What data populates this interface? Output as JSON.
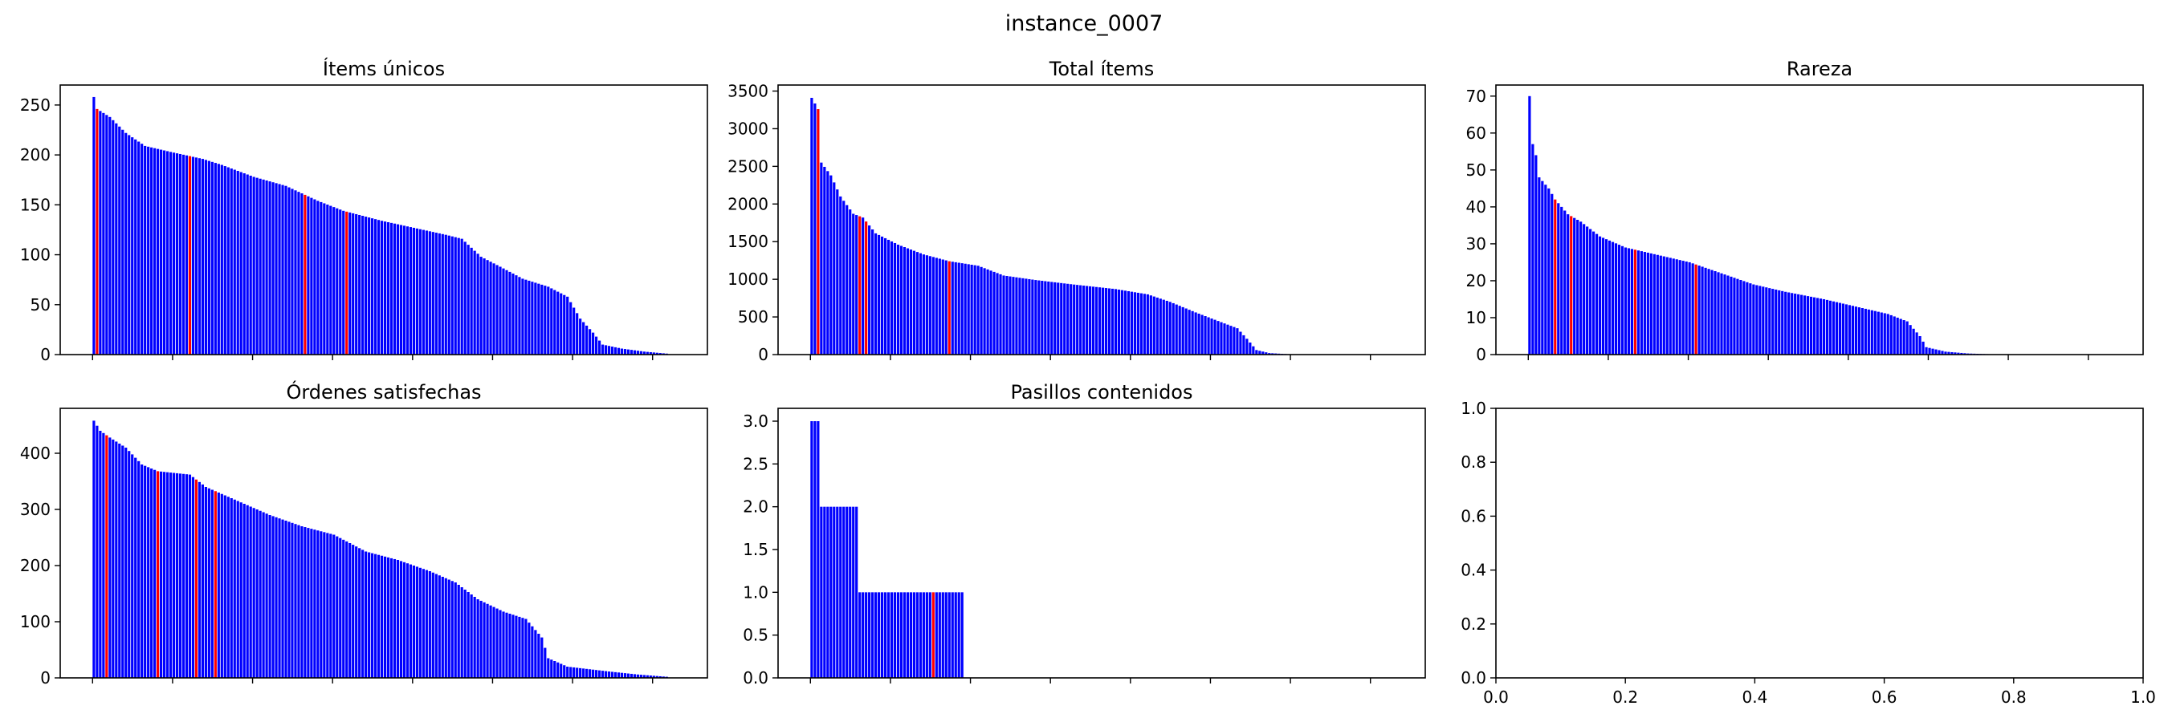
{
  "figure": {
    "suptitle": "instance_0007"
  },
  "colors": {
    "bar": "#0000ff",
    "highlight": "#ff0000",
    "axes": "#000000",
    "background": "#ffffff"
  },
  "chart_data": [
    {
      "type": "bar",
      "title": "Ítems únicos",
      "xlabel": "",
      "ylabel": "",
      "ylim": [
        0,
        270
      ],
      "yticks": [
        0,
        50,
        100,
        150,
        200,
        250
      ],
      "xtick_count": 8,
      "x_tick_labels_visible": false,
      "grid": false,
      "bar_count": 180,
      "highlight_color": "#ff0000",
      "bar_color": "#0000ff",
      "series": [
        {
          "name": "",
          "values_profile": [
            [
              0,
              258
            ],
            [
              1,
              246
            ],
            [
              5,
              238
            ],
            [
              10,
              222
            ],
            [
              16,
              209
            ],
            [
              24,
              203
            ],
            [
              34,
              196
            ],
            [
              40,
              190
            ],
            [
              50,
              178
            ],
            [
              60,
              169
            ],
            [
              70,
              154
            ],
            [
              78,
              144
            ],
            [
              90,
              134
            ],
            [
              100,
              127
            ],
            [
              110,
              120
            ],
            [
              115,
              116
            ],
            [
              121,
              98
            ],
            [
              127,
              88
            ],
            [
              134,
              76
            ],
            [
              142,
              68
            ],
            [
              148,
              58
            ],
            [
              152,
              36
            ],
            [
              156,
              22
            ],
            [
              159,
              10
            ],
            [
              165,
              6
            ],
            [
              172,
              3
            ],
            [
              179,
              1
            ]
          ]
        }
      ],
      "highlighted_bar_indices": [
        1,
        30,
        66,
        79
      ]
    },
    {
      "type": "bar",
      "title": "Total ítems",
      "xlabel": "",
      "ylabel": "",
      "ylim": [
        0,
        3580
      ],
      "yticks": [
        0,
        500,
        1000,
        1500,
        2000,
        2500,
        3000,
        3500
      ],
      "xtick_count": 8,
      "x_tick_labels_visible": false,
      "grid": false,
      "bar_count": 150,
      "highlight_color": "#ff0000",
      "bar_color": "#0000ff",
      "series": [
        {
          "name": "",
          "values_profile": [
            [
              0,
              3410
            ],
            [
              2,
              3260
            ],
            [
              3,
              2550
            ],
            [
              6,
              2380
            ],
            [
              9,
              2100
            ],
            [
              13,
              1870
            ],
            [
              16,
              1820
            ],
            [
              20,
              1610
            ],
            [
              27,
              1460
            ],
            [
              35,
              1330
            ],
            [
              43,
              1240
            ],
            [
              52,
              1180
            ],
            [
              60,
              1050
            ],
            [
              70,
              990
            ],
            [
              82,
              930
            ],
            [
              95,
              870
            ],
            [
              105,
              800
            ],
            [
              112,
              700
            ],
            [
              120,
              560
            ],
            [
              128,
              430
            ],
            [
              133,
              350
            ],
            [
              136,
              210
            ],
            [
              139,
              60
            ],
            [
              143,
              20
            ],
            [
              149,
              5
            ]
          ]
        }
      ],
      "highlighted_bar_indices": [
        2,
        15,
        17,
        43
      ]
    },
    {
      "type": "bar",
      "title": "Rareza",
      "xlabel": "",
      "ylabel": "",
      "ylim": [
        0,
        73
      ],
      "yticks": [
        0,
        10,
        20,
        30,
        40,
        50,
        60,
        70
      ],
      "xtick_count": 8,
      "x_tick_labels_visible": false,
      "grid": false,
      "bar_count": 145,
      "highlight_color": "#ff0000",
      "bar_color": "#0000ff",
      "series": [
        {
          "name": "",
          "values_profile": [
            [
              0,
              70
            ],
            [
              1,
              57
            ],
            [
              2,
              54
            ],
            [
              3,
              48
            ],
            [
              6,
              45
            ],
            [
              8,
              42
            ],
            [
              12,
              38
            ],
            [
              16,
              36
            ],
            [
              22,
              32
            ],
            [
              30,
              29
            ],
            [
              40,
              27
            ],
            [
              50,
              25
            ],
            [
              60,
              22
            ],
            [
              70,
              19
            ],
            [
              80,
              17
            ],
            [
              92,
              15
            ],
            [
              102,
              13
            ],
            [
              112,
              11
            ],
            [
              118,
              9
            ],
            [
              122,
              5
            ],
            [
              124,
              2
            ],
            [
              130,
              0.8
            ],
            [
              137,
              0.3
            ],
            [
              144,
              0.1
            ]
          ]
        }
      ],
      "highlighted_bar_indices": [
        8,
        13,
        33,
        52
      ]
    },
    {
      "type": "bar",
      "title": "Órdenes satisfechas",
      "xlabel": "",
      "ylabel": "",
      "ylim": [
        0,
        480
      ],
      "yticks": [
        0,
        100,
        200,
        300,
        400
      ],
      "xtick_count": 8,
      "x_tick_labels_visible": false,
      "grid": false,
      "bar_count": 180,
      "highlight_color": "#ff0000",
      "bar_color": "#0000ff",
      "series": [
        {
          "name": "",
          "values_profile": [
            [
              0,
              458
            ],
            [
              2,
              440
            ],
            [
              5,
              428
            ],
            [
              10,
              410
            ],
            [
              15,
              380
            ],
            [
              20,
              368
            ],
            [
              30,
              362
            ],
            [
              35,
              340
            ],
            [
              45,
              315
            ],
            [
              55,
              290
            ],
            [
              65,
              270
            ],
            [
              75,
              255
            ],
            [
              85,
              225
            ],
            [
              95,
              210
            ],
            [
              105,
              190
            ],
            [
              113,
              170
            ],
            [
              120,
              140
            ],
            [
              128,
              118
            ],
            [
              135,
              105
            ],
            [
              140,
              72
            ],
            [
              142,
              35
            ],
            [
              148,
              20
            ],
            [
              160,
              12
            ],
            [
              170,
              6
            ],
            [
              179,
              2
            ]
          ]
        }
      ],
      "highlighted_bar_indices": [
        4,
        20,
        32,
        38
      ]
    },
    {
      "type": "bar",
      "title": "Pasillos contenidos",
      "xlabel": "",
      "ylabel": "",
      "ylim": [
        0,
        3.15
      ],
      "yticks": [
        0.0,
        0.5,
        1.0,
        1.5,
        2.0,
        2.5,
        3.0
      ],
      "xtick_count": 8,
      "x_tick_labels_visible": false,
      "grid": false,
      "bar_count": 48,
      "highlight_color": "#ff0000",
      "bar_color": "#0000ff",
      "series": [
        {
          "name": "",
          "values_profile": [
            [
              0,
              3
            ],
            [
              2,
              3
            ],
            [
              3,
              2
            ],
            [
              14,
              2
            ],
            [
              15,
              1
            ],
            [
              47,
              1
            ]
          ]
        }
      ],
      "highlighted_bar_indices": [
        38
      ]
    },
    {
      "type": "bar",
      "title": "",
      "xlabel": "",
      "ylabel": "",
      "xlim": [
        0.0,
        1.0
      ],
      "ylim": [
        0.0,
        1.0
      ],
      "xticks": [
        0.0,
        0.2,
        0.4,
        0.6,
        0.8,
        1.0
      ],
      "yticks": [
        0.0,
        0.2,
        0.4,
        0.6,
        0.8,
        1.0
      ],
      "x_tick_labels_visible": true,
      "grid": false,
      "bar_count": 0,
      "series": []
    }
  ]
}
